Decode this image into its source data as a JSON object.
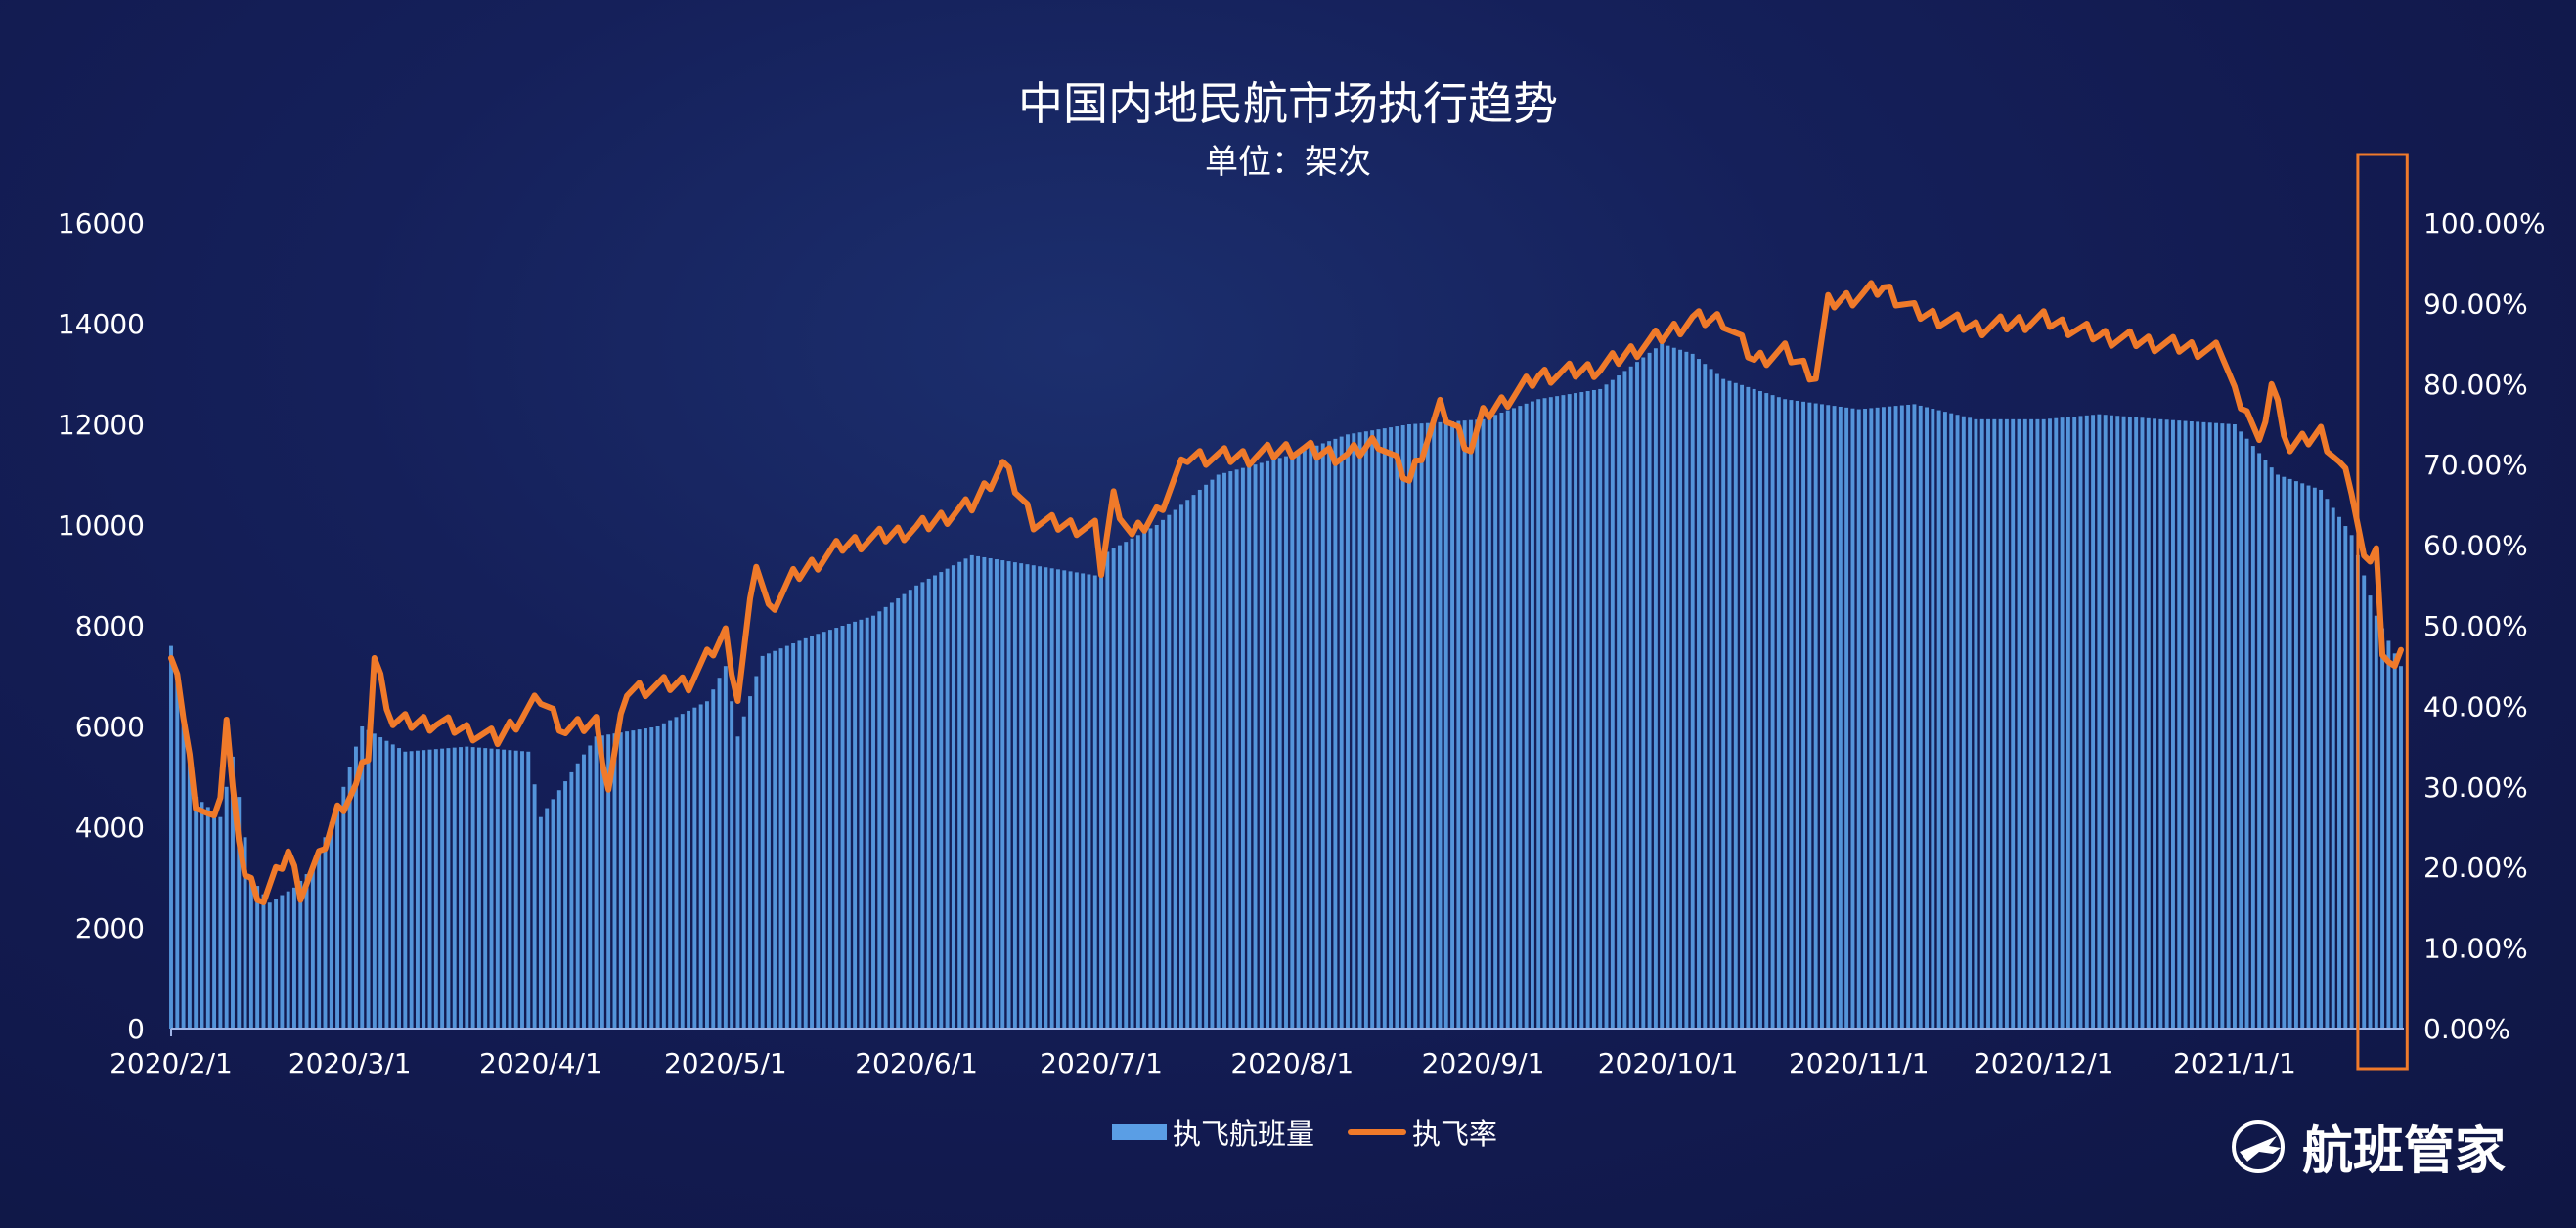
{
  "chart_data": {
    "type": "bar+line",
    "title": "中国内地民航市场执行趋势",
    "subtitle": "单位：架次",
    "x_range": [
      "2020/2/1",
      "2021/1/28"
    ],
    "x_tick_labels": [
      "2020/2/1",
      "2020/3/1",
      "2020/4/1",
      "2020/5/1",
      "2020/6/1",
      "2020/7/1",
      "2020/8/1",
      "2020/9/1",
      "2020/10/1",
      "2020/11/1",
      "2020/12/1",
      "2021/1/1"
    ],
    "y_left": {
      "min": 0,
      "max": 16000,
      "ticks": [
        "0",
        "2000",
        "4000",
        "6000",
        "8000",
        "10000",
        "12000",
        "14000",
        "16000"
      ]
    },
    "y_right": {
      "min": 0,
      "max": 100,
      "ticks": [
        "0.00%",
        "10.00%",
        "20.00%",
        "30.00%",
        "40.00%",
        "50.00%",
        "60.00%",
        "70.00%",
        "80.00%",
        "90.00%",
        "100.00%"
      ]
    },
    "series": [
      {
        "name": "执飞航班量",
        "type": "bar",
        "axis": "left",
        "color": "#5a9ee5",
        "keypoints": [
          [
            "2020/2/1",
            7600
          ],
          [
            "2020/2/3",
            6200
          ],
          [
            "2020/2/5",
            4600
          ],
          [
            "2020/2/9",
            4200
          ],
          [
            "2020/2/11",
            5400
          ],
          [
            "2020/2/14",
            3000
          ],
          [
            "2020/2/17",
            2500
          ],
          [
            "2020/2/21",
            2800
          ],
          [
            "2020/2/24",
            3200
          ],
          [
            "2020/2/28",
            4400
          ],
          [
            "2020/3/3",
            6000
          ],
          [
            "2020/3/10",
            5500
          ],
          [
            "2020/3/20",
            5600
          ],
          [
            "2020/3/30",
            5500
          ],
          [
            "2020/4/1",
            4200
          ],
          [
            "2020/4/10",
            5800
          ],
          [
            "2020/4/20",
            6000
          ],
          [
            "2020/4/28",
            6500
          ],
          [
            "2020/5/1",
            7200
          ],
          [
            "2020/5/3",
            5800
          ],
          [
            "2020/5/7",
            7400
          ],
          [
            "2020/5/15",
            7800
          ],
          [
            "2020/5/25",
            8200
          ],
          [
            "2020/6/1",
            8800
          ],
          [
            "2020/6/10",
            9400
          ],
          [
            "2020/6/20",
            9200
          ],
          [
            "2020/6/30",
            9000
          ],
          [
            "2020/7/1",
            9400
          ],
          [
            "2020/7/10",
            10000
          ],
          [
            "2020/7/20",
            11000
          ],
          [
            "2020/8/1",
            11400
          ],
          [
            "2020/8/10",
            11800
          ],
          [
            "2020/8/20",
            12000
          ],
          [
            "2020/9/1",
            12100
          ],
          [
            "2020/9/10",
            12500
          ],
          [
            "2020/9/20",
            12700
          ],
          [
            "2020/9/30",
            13600
          ],
          [
            "2020/10/5",
            13400
          ],
          [
            "2020/10/10",
            12900
          ],
          [
            "2020/10/20",
            12500
          ],
          [
            "2020/11/1",
            12300
          ],
          [
            "2020/11/10",
            12400
          ],
          [
            "2020/11/20",
            12100
          ],
          [
            "2020/12/1",
            12100
          ],
          [
            "2020/12/10",
            12200
          ],
          [
            "2020/12/20",
            12100
          ],
          [
            "2021/1/1",
            12000
          ],
          [
            "2021/1/8",
            11000
          ],
          [
            "2021/1/15",
            10700
          ],
          [
            "2021/1/20",
            9800
          ],
          [
            "2021/1/24",
            8200
          ],
          [
            "2021/1/28",
            7200
          ]
        ]
      },
      {
        "name": "执飞率",
        "type": "line",
        "axis": "right",
        "unit": "%",
        "color": "#f07a2a",
        "keypoints": [
          [
            "2020/2/1",
            46
          ],
          [
            "2020/2/2",
            44
          ],
          [
            "2020/2/4",
            33
          ],
          [
            "2020/2/5",
            28
          ],
          [
            "2020/2/7",
            26
          ],
          [
            "2020/2/9",
            29
          ],
          [
            "2020/2/10",
            38
          ],
          [
            "2020/2/11",
            29
          ],
          [
            "2020/2/13",
            19
          ],
          [
            "2020/2/16",
            16
          ],
          [
            "2020/2/18",
            19
          ],
          [
            "2020/2/20",
            22
          ],
          [
            "2020/2/22",
            17
          ],
          [
            "2020/2/25",
            21
          ],
          [
            "2020/2/28",
            27
          ],
          [
            "2020/3/2",
            30
          ],
          [
            "2020/3/4",
            34
          ],
          [
            "2020/3/5",
            46
          ],
          [
            "2020/3/8",
            38
          ],
          [
            "2020/3/15",
            38
          ],
          [
            "2020/3/25",
            36
          ],
          [
            "2020/4/1",
            41
          ],
          [
            "2020/4/5",
            37
          ],
          [
            "2020/4/10",
            38
          ],
          [
            "2020/4/12",
            30
          ],
          [
            "2020/4/15",
            42
          ],
          [
            "2020/4/25",
            43
          ],
          [
            "2020/5/1",
            49
          ],
          [
            "2020/5/3",
            41
          ],
          [
            "2020/5/6",
            58
          ],
          [
            "2020/5/8",
            52
          ],
          [
            "2020/5/12",
            56
          ],
          [
            "2020/5/20",
            60
          ],
          [
            "2020/6/1",
            62
          ],
          [
            "2020/6/10",
            65
          ],
          [
            "2020/6/15",
            70
          ],
          [
            "2020/6/20",
            63
          ],
          [
            "2020/6/30",
            62
          ],
          [
            "2020/7/1",
            57
          ],
          [
            "2020/7/3",
            66
          ],
          [
            "2020/7/6",
            61
          ],
          [
            "2020/7/10",
            64
          ],
          [
            "2020/7/15",
            71
          ],
          [
            "2020/7/25",
            71
          ],
          [
            "2020/8/1",
            72
          ],
          [
            "2020/8/10",
            71
          ],
          [
            "2020/8/15",
            73
          ],
          [
            "2020/8/20",
            68
          ],
          [
            "2020/8/25",
            77
          ],
          [
            "2020/8/30",
            72
          ],
          [
            "2020/9/1",
            76
          ],
          [
            "2020/9/10",
            81
          ],
          [
            "2020/9/20",
            82
          ],
          [
            "2020/9/30",
            86
          ],
          [
            "2020/10/5",
            88
          ],
          [
            "2020/10/10",
            88
          ],
          [
            "2020/10/15",
            83
          ],
          [
            "2020/10/20",
            84
          ],
          [
            "2020/10/25",
            81
          ],
          [
            "2020/10/27",
            90
          ],
          [
            "2020/11/1",
            91
          ],
          [
            "2020/11/5",
            92
          ],
          [
            "2020/11/10",
            89
          ],
          [
            "2020/11/20",
            87
          ],
          [
            "2020/12/1",
            88
          ],
          [
            "2020/12/10",
            86
          ],
          [
            "2020/12/20",
            85
          ],
          [
            "2020/12/30",
            84
          ],
          [
            "2021/1/1",
            79
          ],
          [
            "2021/1/3",
            77
          ],
          [
            "2021/1/5",
            72
          ],
          [
            "2021/1/7",
            80
          ],
          [
            "2021/1/10",
            72
          ],
          [
            "2021/1/15",
            74
          ],
          [
            "2021/1/18",
            70
          ],
          [
            "2021/1/20",
            67
          ],
          [
            "2021/1/22",
            58
          ],
          [
            "2021/1/24",
            60
          ],
          [
            "2021/1/25",
            46
          ],
          [
            "2021/1/27",
            45
          ],
          [
            "2021/1/28",
            47
          ]
        ]
      }
    ],
    "highlight_box": {
      "from": "2021/1/21",
      "to": "2021/1/29",
      "color": "#f07a2a"
    },
    "legend_position": "bottom-center",
    "grid": false
  },
  "legend": {
    "bar_label": "执飞航班量",
    "line_label": "执飞率"
  },
  "brand": {
    "name": "航班管家",
    "icon": "airplane-logo-icon"
  }
}
